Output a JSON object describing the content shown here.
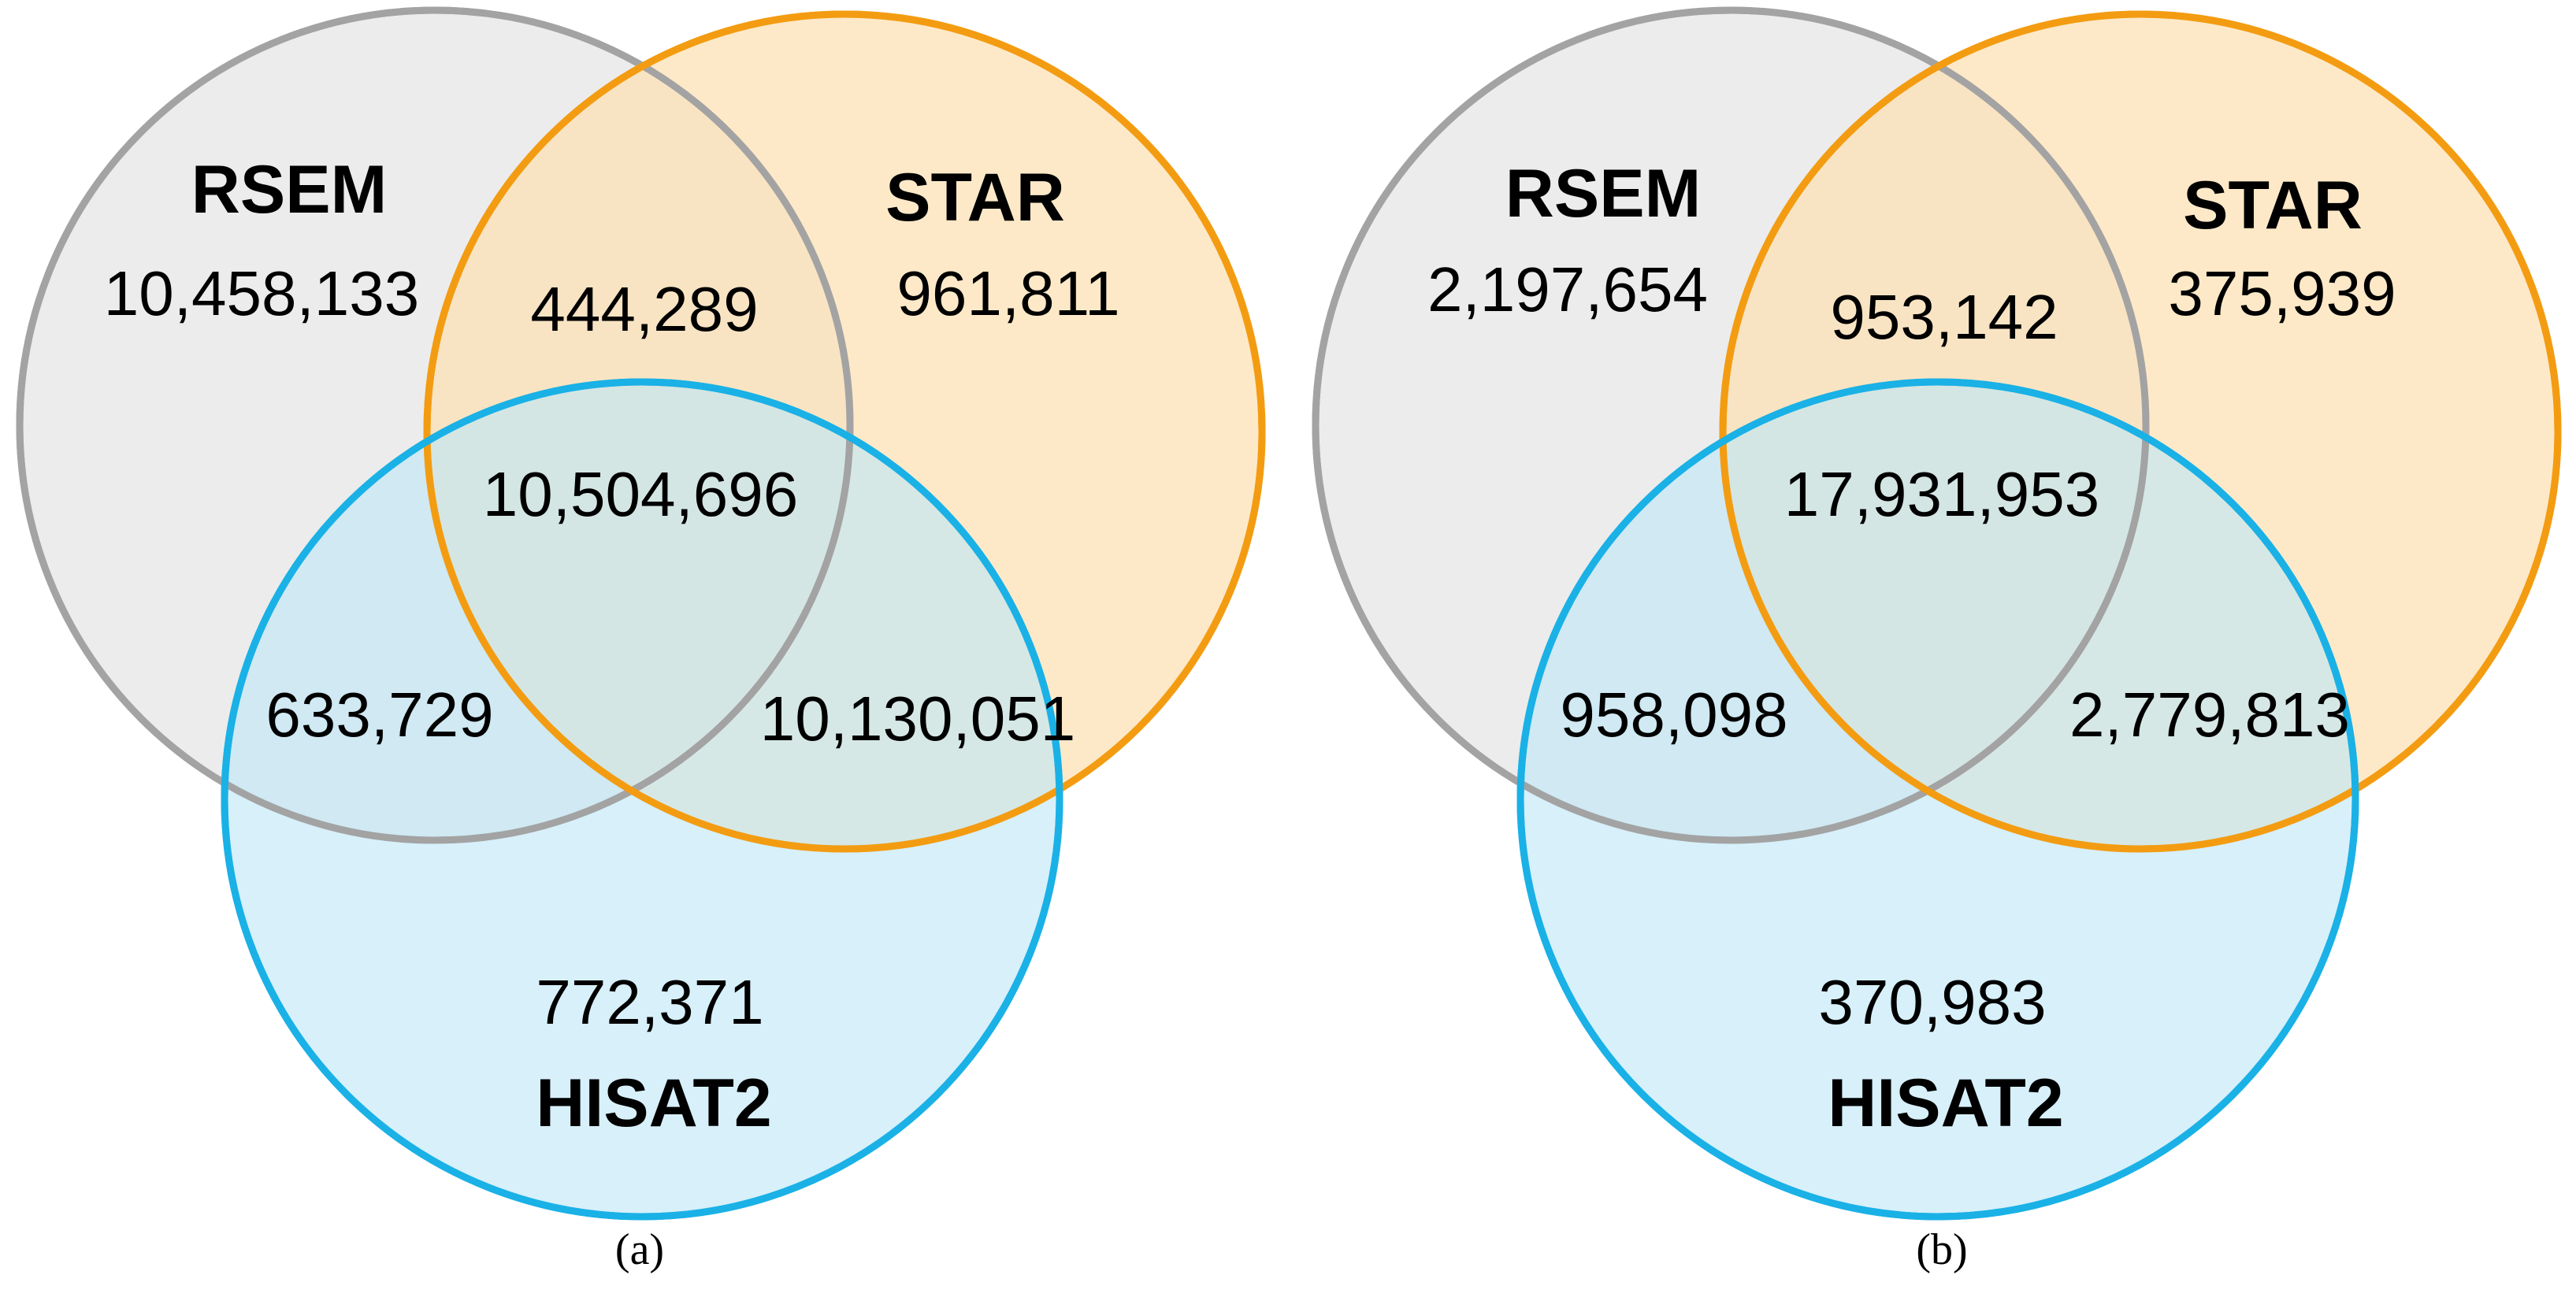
{
  "colors": {
    "rsem_fill": "#e5e5e5",
    "rsem_stroke": "#a3a3a3",
    "star_fill": "#fce2b6",
    "star_stroke": "#f39c12",
    "hisat_fill": "#bfe6f7",
    "hisat_stroke": "#1ab1e6"
  },
  "panels": [
    {
      "caption": "(a)",
      "sets": {
        "rsem": "RSEM",
        "star": "STAR",
        "hisat2": "HISAT2"
      },
      "regions": {
        "rsem_only": "10,458,133",
        "star_only": "961,811",
        "hisat2_only": "772,371",
        "rsem_star": "444,289",
        "rsem_hisat2": "633,729",
        "star_hisat2": "10,130,051",
        "all_three": "10,504,696"
      }
    },
    {
      "caption": "(b)",
      "sets": {
        "rsem": "RSEM",
        "star": "STAR",
        "hisat2": "HISAT2"
      },
      "regions": {
        "rsem_only": "2,197,654",
        "star_only": "375,939",
        "hisat2_only": "370,983",
        "rsem_star": "953,142",
        "rsem_hisat2": "958,098",
        "star_hisat2": "2,779,813",
        "all_three": "17,931,953"
      }
    }
  ]
}
